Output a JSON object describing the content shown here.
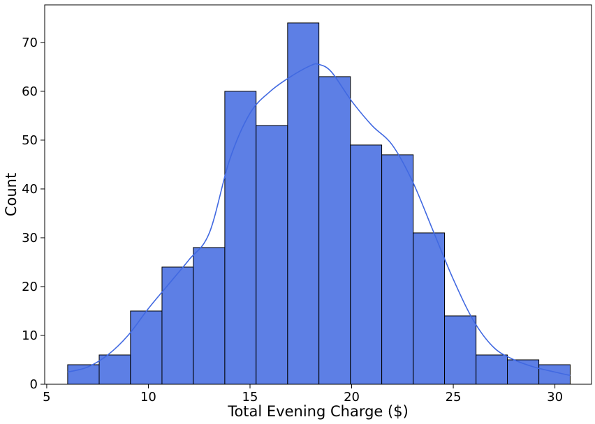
{
  "chart_data": {
    "type": "histogram",
    "xlabel": "Total Evening Charge ($)",
    "ylabel": "Count",
    "xlim": [
      4.9,
      31.8
    ],
    "ylim": [
      0,
      77.7
    ],
    "xticks": [
      5,
      10,
      15,
      20,
      25,
      30
    ],
    "yticks": [
      0,
      10,
      20,
      30,
      40,
      50,
      60,
      70
    ],
    "grid": false,
    "bar_color": "#4169E1",
    "bar_edge_color": "#000000",
    "kde_color": "#4169E1",
    "bins": [
      {
        "start": 6.03,
        "end": 7.58,
        "count": 4
      },
      {
        "start": 7.58,
        "end": 9.12,
        "count": 6
      },
      {
        "start": 9.12,
        "end": 10.67,
        "count": 15
      },
      {
        "start": 10.67,
        "end": 12.21,
        "count": 24
      },
      {
        "start": 12.21,
        "end": 13.76,
        "count": 28
      },
      {
        "start": 13.76,
        "end": 15.3,
        "count": 60
      },
      {
        "start": 15.3,
        "end": 16.85,
        "count": 53
      },
      {
        "start": 16.85,
        "end": 18.39,
        "count": 74
      },
      {
        "start": 18.39,
        "end": 19.94,
        "count": 63
      },
      {
        "start": 19.94,
        "end": 21.48,
        "count": 49
      },
      {
        "start": 21.48,
        "end": 23.03,
        "count": 47
      },
      {
        "start": 23.03,
        "end": 24.57,
        "count": 31
      },
      {
        "start": 24.57,
        "end": 26.12,
        "count": 14
      },
      {
        "start": 26.12,
        "end": 27.66,
        "count": 6
      },
      {
        "start": 27.66,
        "end": 29.21,
        "count": 5
      },
      {
        "start": 29.21,
        "end": 30.75,
        "count": 4
      }
    ],
    "kde": {
      "x": [
        6.03,
        7.0,
        8.0,
        9.0,
        10.0,
        11.0,
        12.0,
        13.0,
        14.0,
        15.0,
        16.0,
        17.0,
        18.0,
        18.39,
        19.0,
        20.0,
        21.0,
        22.0,
        23.0,
        24.0,
        25.0,
        26.0,
        27.0,
        28.0,
        29.0,
        30.0,
        30.75
      ],
      "y": [
        2.5,
        3.5,
        6.0,
        10.0,
        15.5,
        20.5,
        25.5,
        31.0,
        46.0,
        55.5,
        60.0,
        63.0,
        65.3,
        65.5,
        64.0,
        58.0,
        53.0,
        49.0,
        41.5,
        31.5,
        21.5,
        13.0,
        7.5,
        5.0,
        3.5,
        2.5,
        1.8
      ]
    }
  }
}
